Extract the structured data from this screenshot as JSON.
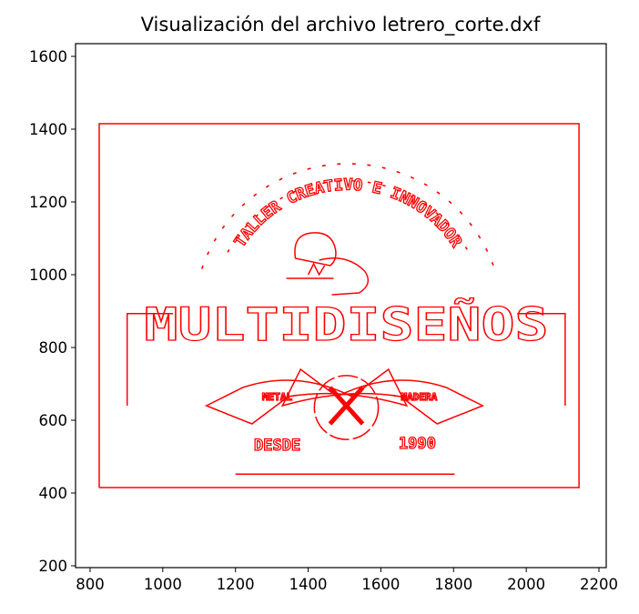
{
  "chart_data": {
    "type": "line",
    "title": "Visualización del archivo letrero_corte.dxf",
    "xlabel": "",
    "ylabel": "",
    "xlim": [
      760,
      2220
    ],
    "ylim": [
      195,
      1635
    ],
    "xticks": [
      800,
      1000,
      1200,
      1400,
      1600,
      1800,
      2000,
      2200
    ],
    "yticks": [
      200,
      400,
      600,
      800,
      1000,
      1200,
      1400,
      1600
    ],
    "grid": false,
    "line_color": "#ff0000",
    "outer_frame": {
      "x": [
        825,
        2145,
        2145,
        825,
        825
      ],
      "y": [
        415,
        415,
        1415,
        1415,
        415
      ]
    },
    "inner_brackets": [
      {
        "x": [
          902,
          902,
          1028
        ],
        "y": [
          640,
          893,
          893
        ]
      },
      {
        "x": [
          1975,
          2107,
          2107
        ],
        "y": [
          893,
          893,
          640
        ]
      }
    ],
    "base_line": {
      "x": [
        1200,
        1803
      ],
      "y": [
        452,
        452
      ]
    },
    "arc_dashes": [
      {
        "cx": 1510,
        "cy": 880,
        "r": 425,
        "from_deg": 20,
        "to_deg": 160,
        "count": 26
      },
      {
        "cx": 1510,
        "cy": 880,
        "r": 378,
        "from_deg": 30,
        "to_deg": 150,
        "count": 20
      }
    ],
    "emblem_circle": {
      "cx": 1505,
      "cy": 635,
      "r": 88
    },
    "texts": {
      "main": "MULTIDISEÑOS",
      "arc": "TALLER CREATIVO E INNOVADOR",
      "since": "DESDE",
      "year": "1990",
      "left_ribbon": "METAL",
      "right_ribbon": "MADERA"
    }
  }
}
